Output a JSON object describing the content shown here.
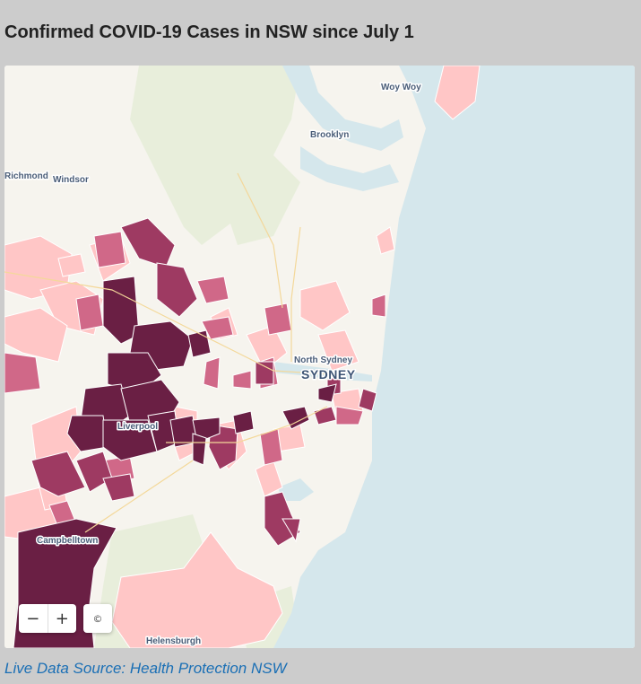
{
  "title": "Confirmed COVID-19 Cases in NSW since July 1",
  "map": {
    "labels": {
      "woy_woy": "Woy Woy",
      "brooklyn": "Brooklyn",
      "richmond": "Richmond",
      "windsor": "Windsor",
      "north_sydney": "North Sydney",
      "sydney": "SYDNEY",
      "liverpool": "Liverpool",
      "campbelltown": "Campbelltown",
      "helensburgh": "Helensburgh"
    },
    "colors": {
      "sea": "#d5e7ec",
      "land": "#f6f4ee",
      "parkland": "#e8eedb",
      "low": "#ffc6c6",
      "medium": "#d06888",
      "high": "#9e3a62",
      "very_high": "#6a1f44"
    },
    "controls": {
      "zoom_out": "−",
      "zoom_in": "+",
      "attribution": "©"
    }
  },
  "source": {
    "text": "Live Data Source: Health Protection NSW"
  }
}
